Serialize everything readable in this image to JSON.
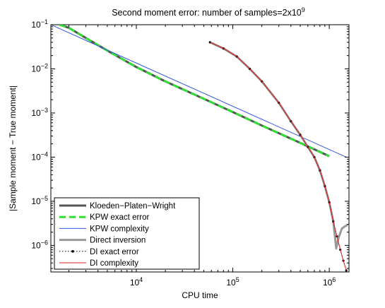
{
  "chart_data": {
    "type": "line",
    "title_main": "Second moment error: number of samples=2x10",
    "title_exp": "9",
    "xlabel": "CPU time",
    "ylabel": "|Sample moment − True moment|",
    "x_scale": "log",
    "y_scale": "log",
    "xlim": [
      1300,
      1600000
    ],
    "ylim": [
      2.5e-07,
      0.1
    ],
    "grid": false,
    "legend_position": "bottom-left",
    "x_ticks": [
      {
        "value": 10000,
        "base": "10",
        "exp": "4"
      },
      {
        "value": 100000,
        "base": "10",
        "exp": "5"
      },
      {
        "value": 1000000,
        "base": "10",
        "exp": "6"
      }
    ],
    "y_ticks": [
      {
        "value": 0.1,
        "base": "10",
        "exp": "−1"
      },
      {
        "value": 0.01,
        "base": "10",
        "exp": "−2"
      },
      {
        "value": 0.001,
        "base": "10",
        "exp": "−3"
      },
      {
        "value": 0.0001,
        "base": "10",
        "exp": "−4"
      },
      {
        "value": 1e-05,
        "base": "10",
        "exp": "−5"
      },
      {
        "value": 1e-06,
        "base": "10",
        "exp": "−6"
      }
    ],
    "series": [
      {
        "name": "Kloeden−Platen−Wright",
        "color": "#555555",
        "style": "solid",
        "width": 3,
        "x": [
          1600,
          2000,
          3000,
          5000,
          10000,
          20000,
          50000,
          100000,
          200000,
          500000,
          1000000
        ],
        "y": [
          0.1,
          0.085,
          0.05,
          0.026,
          0.011,
          0.0052,
          0.0021,
          0.00105,
          0.00052,
          0.00021,
          0.000105
        ]
      },
      {
        "name": "KPW exact error",
        "color": "#33dd33",
        "style": "dashed",
        "width": 3,
        "x": [
          1600,
          2000,
          3000,
          5000,
          10000,
          20000,
          50000,
          100000,
          200000,
          500000,
          1000000
        ],
        "y": [
          0.1,
          0.085,
          0.05,
          0.026,
          0.011,
          0.0052,
          0.0021,
          0.00105,
          0.00052,
          0.00021,
          0.000105
        ]
      },
      {
        "name": "KPW complexity",
        "color": "#3355dd",
        "style": "solid",
        "width": 1,
        "x": [
          1300,
          1500000
        ],
        "y": [
          0.1,
          0.0001
        ]
      },
      {
        "name": "Direct inversion",
        "color": "#999999",
        "style": "solid",
        "width": 3,
        "x": [
          58000,
          80000,
          110000,
          150000,
          200000,
          300000,
          400000,
          500000,
          600000,
          700000,
          800000,
          900000,
          1000000,
          1100000,
          1180000,
          1250000,
          1350000,
          1450000,
          1550000
        ],
        "y": [
          0.04,
          0.029,
          0.019,
          0.01,
          0.0052,
          0.0017,
          0.00065,
          0.00032,
          0.00017,
          0.0001,
          5e-05,
          2.2e-05,
          9.5e-06,
          3.5e-06,
          8.5e-07,
          1.5e-06,
          2.4e-06,
          2.7e-06,
          2.9e-06
        ]
      },
      {
        "name": "DI exact error",
        "color": "#000000",
        "style": "dotted",
        "width": 1,
        "x": [
          58000,
          80000,
          110000,
          150000,
          200000,
          300000,
          400000,
          500000,
          600000,
          700000,
          800000,
          900000,
          1000000,
          1100000,
          1200000,
          1300000,
          1400000,
          1500000
        ],
        "y": [
          0.04,
          0.029,
          0.019,
          0.01,
          0.0052,
          0.0017,
          0.00065,
          0.00032,
          0.00017,
          0.0001,
          5e-05,
          2.2e-05,
          9.5e-06,
          3.5e-06,
          1.6e-06,
          8e-07,
          4.5e-07,
          2.7e-07
        ]
      },
      {
        "name": "DI complexity",
        "color": "#dd2222",
        "style": "solid",
        "width": 1,
        "x": [
          58000,
          80000,
          110000,
          150000,
          200000,
          300000,
          400000,
          500000,
          600000,
          700000,
          800000,
          900000,
          1000000,
          1100000,
          1200000,
          1300000,
          1400000,
          1500000
        ],
        "y": [
          0.04,
          0.029,
          0.019,
          0.01,
          0.0052,
          0.0017,
          0.00065,
          0.00032,
          0.00017,
          0.0001,
          5e-05,
          2.2e-05,
          9.5e-06,
          3.5e-06,
          1.6e-06,
          8e-07,
          4.5e-07,
          2.7e-07
        ]
      }
    ],
    "legend": [
      {
        "label": "Kloeden−Platen−Wright",
        "series": 0
      },
      {
        "label": "KPW exact error",
        "series": 1
      },
      {
        "label": "KPW complexity",
        "series": 2
      },
      {
        "label": "Direct inversion",
        "series": 3
      },
      {
        "label": "DI exact error",
        "series": 4
      },
      {
        "label": "DI complexity",
        "series": 5
      }
    ]
  }
}
